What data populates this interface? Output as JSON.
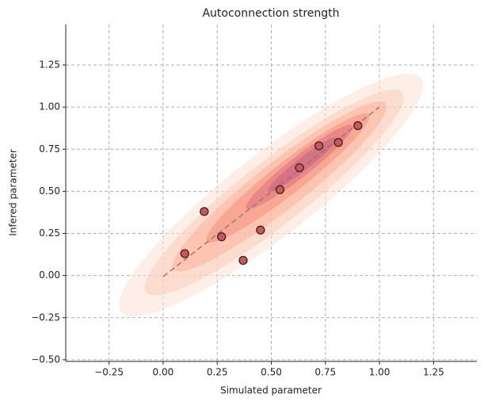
{
  "chart_data": {
    "type": "scatter",
    "title": "Autoconnection strength",
    "xlabel": "Simulated parameter",
    "ylabel": "Infered parameter",
    "x": [
      0.1,
      0.19,
      0.27,
      0.37,
      0.45,
      0.54,
      0.63,
      0.72,
      0.81,
      0.9
    ],
    "values": [
      0.13,
      0.38,
      0.23,
      0.09,
      0.27,
      0.51,
      0.64,
      0.77,
      0.79,
      0.89
    ],
    "color": "#c8575b",
    "xlim": [
      -0.45,
      1.45
    ],
    "ylim": [
      -0.51,
      1.49
    ],
    "xticks": [
      {
        "value": -0.25,
        "label": "−0.25"
      },
      {
        "value": 0,
        "label": "0.00"
      },
      {
        "value": 0.25,
        "label": "0.25"
      },
      {
        "value": 0.5,
        "label": "0.50"
      },
      {
        "value": 0.75,
        "label": "0.75"
      },
      {
        "value": 1,
        "label": "1.00"
      },
      {
        "value": 1.25,
        "label": "1.25"
      }
    ],
    "yticks": [
      {
        "value": -0.5,
        "label": "−0.50"
      },
      {
        "value": -0.25,
        "label": "−0.25"
      },
      {
        "value": 0,
        "label": "0.00"
      },
      {
        "value": 0.25,
        "label": "0.25"
      },
      {
        "value": 0.5,
        "label": "0.50"
      },
      {
        "value": 0.75,
        "label": "0.75"
      },
      {
        "value": 1,
        "label": "1.00"
      },
      {
        "value": 1.25,
        "label": "1.25"
      }
    ],
    "grid": true
  }
}
